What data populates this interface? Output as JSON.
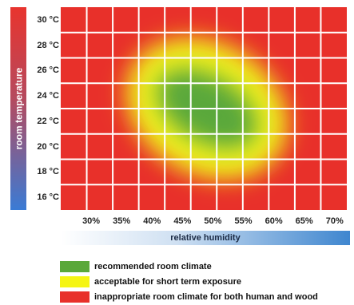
{
  "chart_data": {
    "type": "heatmap",
    "ylabel": "room temperature",
    "xlabel": "relative humidity",
    "y_ticks": [
      "30 °C",
      "28 °C",
      "26 °C",
      "24 °C",
      "22 °C",
      "20 °C",
      "18 °C",
      "16 °C"
    ],
    "x_ticks": [
      "30%",
      "35%",
      "40%",
      "45%",
      "50%",
      "55%",
      "60%",
      "65%",
      "70%"
    ],
    "xlim": [
      25,
      72
    ],
    "ylim": [
      15,
      31
    ],
    "zones": [
      {
        "name": "recommended room climate",
        "color": "#5aa83a",
        "center": [
          49,
          23
        ],
        "radius": [
          9,
          2.6
        ],
        "rotation_deg": 30
      },
      {
        "name": "acceptable for short term exposure",
        "color": "#f0f01a",
        "center": [
          49,
          23
        ],
        "radius": [
          14,
          5.2
        ],
        "rotation_deg": 30
      }
    ],
    "background_color": "#e8302a",
    "grid": true,
    "legend": {
      "position": "bottom-left",
      "items": [
        {
          "label": "recommended room climate",
          "color": "#5aa83a"
        },
        {
          "label": "acceptable for short term exposure",
          "color": "#f5f514"
        },
        {
          "label": "inappropriate room climate for both human and wood",
          "color": "#e8302a"
        }
      ]
    }
  }
}
